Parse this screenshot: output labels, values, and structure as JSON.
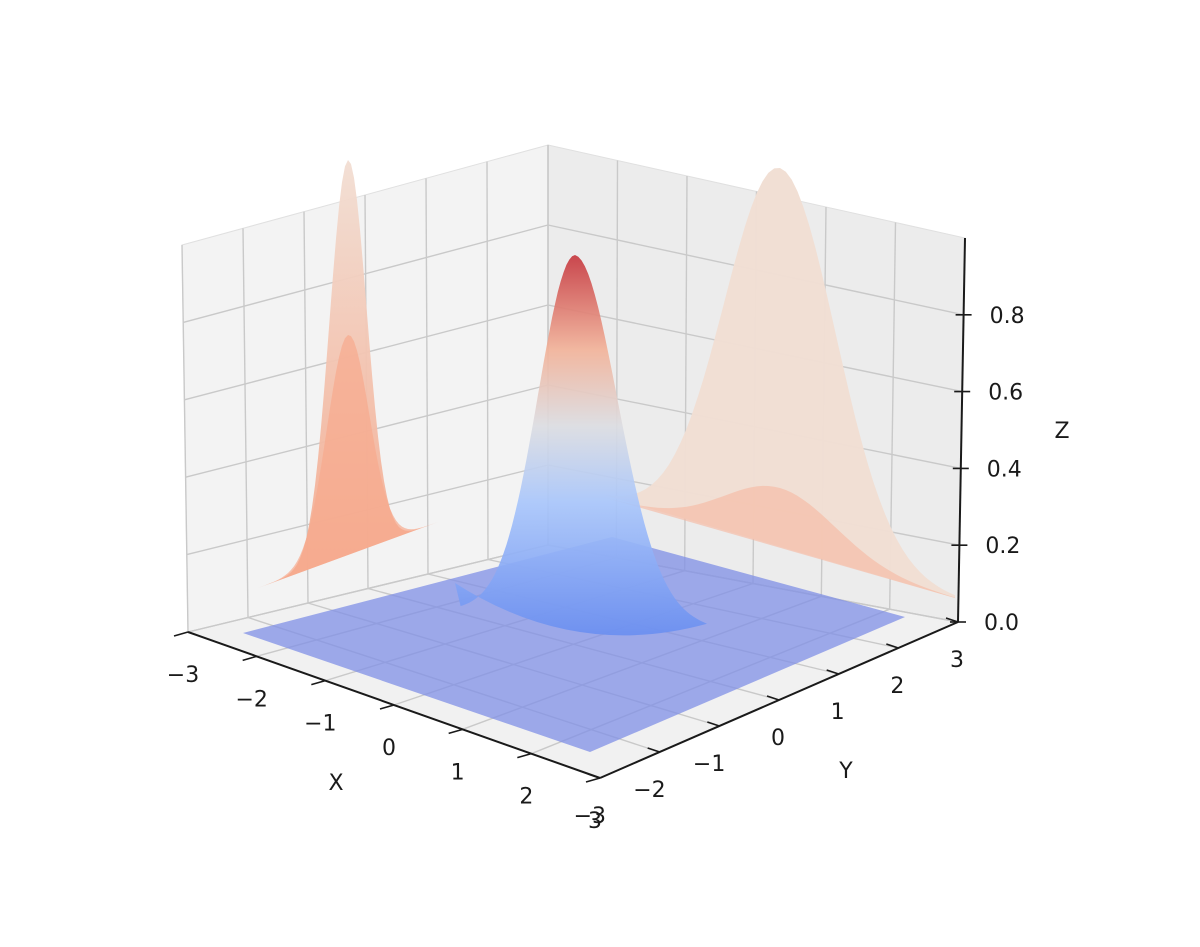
{
  "chart_data": {
    "type": "surface3d",
    "function": "exp(-(x^2 + y^2))",
    "x": [
      -3,
      -2,
      -1,
      0,
      1,
      2,
      3
    ],
    "y": [
      -3,
      -2,
      -1,
      0,
      1,
      2,
      3
    ],
    "xlim": [
      -3,
      3
    ],
    "ylim": [
      -3,
      3
    ],
    "zlim": [
      0,
      1
    ],
    "xlabel": "X",
    "ylabel": "Y",
    "zlabel": "Z",
    "x_ticks": [
      "−3",
      "−2",
      "−1",
      "0",
      "1",
      "2",
      "3"
    ],
    "y_ticks": [
      "−3",
      "−2",
      "−1",
      "0",
      "1",
      "2",
      "3"
    ],
    "z_ticks": [
      "0.0",
      "0.2",
      "0.4",
      "0.6",
      "0.8"
    ],
    "z_tick_values": [
      0,
      0.2,
      0.4,
      0.6,
      0.8
    ],
    "surface_peak": {
      "x": 0,
      "y": 0,
      "z": 1.0
    },
    "projections": [
      {
        "plane": "x-wall",
        "description": "z-contours onto x plane",
        "profile": "exp(-y^2)"
      },
      {
        "plane": "y-wall",
        "description": "z-contours onto y plane",
        "profile": "exp(-x^2)"
      },
      {
        "plane": "floor",
        "level": 0.0
      }
    ],
    "colormap": "coolwarm",
    "grid": true
  }
}
